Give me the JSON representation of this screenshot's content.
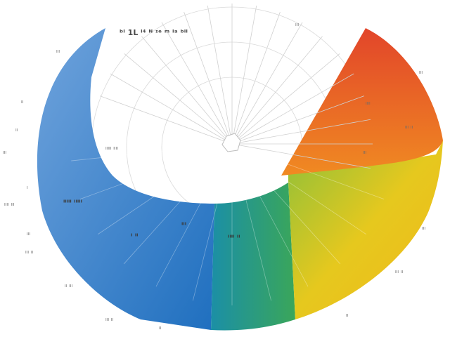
{
  "chart_data": {
    "type": "pie",
    "title": "ᵇᴵ 1L ᴵ⁴ ᴺ ᶦᵉ ᵐ ᴵᵃ ᵇᴵᴵ",
    "segments": [
      {
        "label": "ᴵᴵᴿ ᴱᴵᴵᴵᴵ",
        "color": "#3b7fc4"
      },
      {
        "label": "ᴵᴵᴵᴱᴵ ᴵᴵ",
        "color": "#1f9a86"
      },
      {
        "label": "ᴵᴱᴵᴵᴵᴵ ᴵᴿᴵᴱ",
        "color": "#e8c61a"
      },
      {
        "label": "ᴵᴵᴵᴵ",
        "color": "#e2452a"
      }
    ],
    "inner_labels": [
      "ᴵᴵᴵᴵᴵ ᴵᴵᴵᴵᴵ",
      "ᴵᴵᴵ",
      "ᴵ ᴵᴵ",
      "ᴵᴵᴵᴵ ᴵᴵ"
    ],
    "outer_labels": [
      "ᴵᴵᴵ",
      "ᴵᴵ",
      "ᴵᴵ",
      "ᴵᴵᴵ",
      "ᴵᴵᴵᴵᴵ ᴵᴵᴵᴵ",
      "ᴵ",
      "ᴵᴵᴵᴵ ᴵᴵᴵ",
      "ᴵᴵᴵ",
      "ᴵᴵᴵ ᴵᴵ",
      "ᴵᴵ ᴵᴵᴵ",
      "ᴵᴵᴵ ᴵᴵ",
      "ᴵᴵ",
      "ᴵᴵᴵ",
      "ᴵᴵᴵ",
      "ᴵᴵᴵᴵ",
      "ᴵᴵᴵ ᴵᴵ",
      "ᴵᴵᴵ",
      "ᴵᴵᴵ",
      "ᴵᴵᴵ ᴵᴵ",
      "ᴵᴵ"
    ]
  }
}
